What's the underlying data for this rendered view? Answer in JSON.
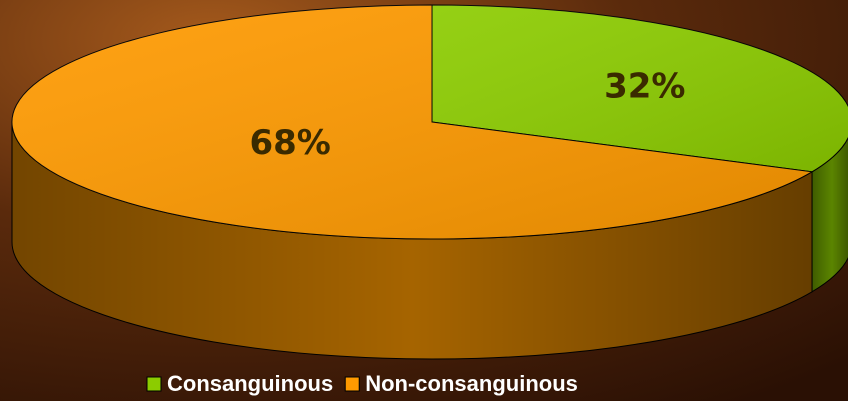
{
  "chart_data": {
    "type": "pie",
    "categories": [
      "Consanguinous",
      "Non-consanguinous"
    ],
    "values": [
      32,
      68
    ],
    "value_labels": [
      "32%",
      "68%"
    ],
    "colors": [
      "#8ccc00",
      "#ff9a00"
    ],
    "legend": "bottom"
  }
}
